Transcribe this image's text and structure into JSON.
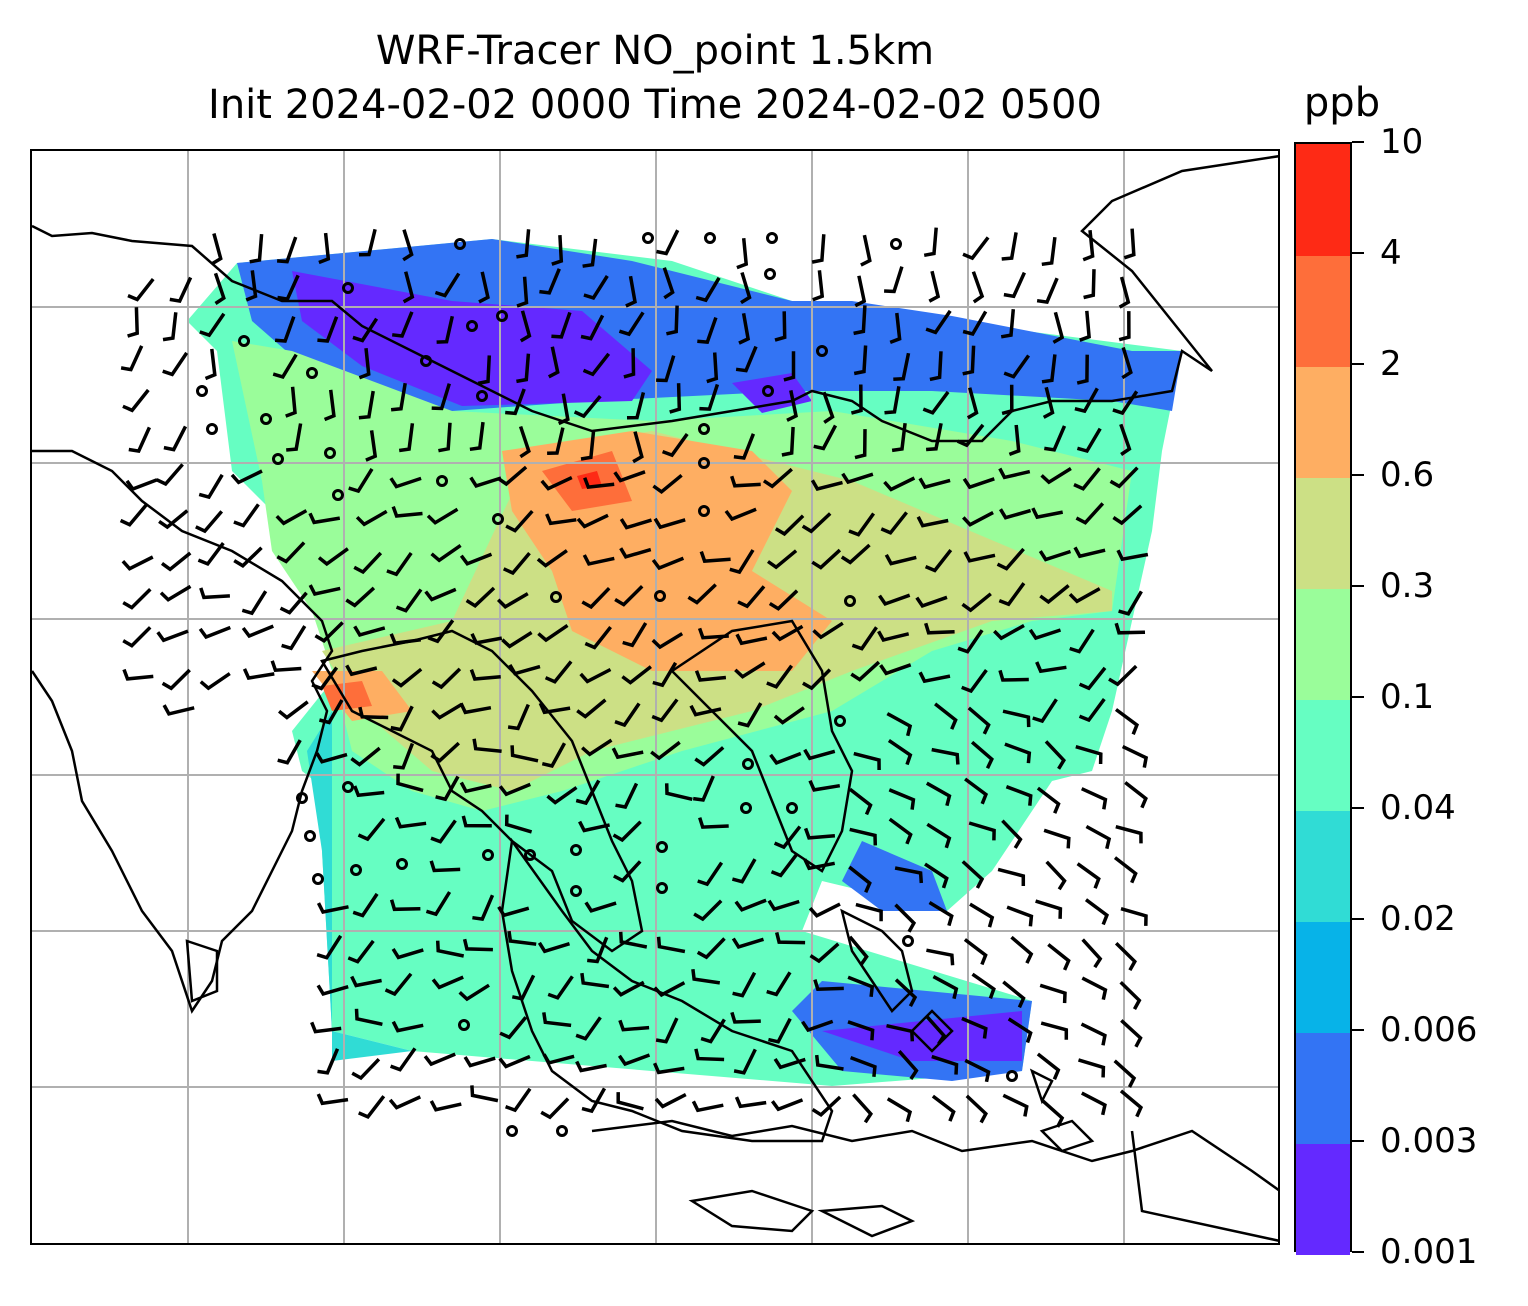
{
  "title": {
    "line1": "WRF-Tracer NO_point 1.5km",
    "line2": "Init 2024-02-02 0000 Time 2024-02-02 0500"
  },
  "colorbar": {
    "unit": "ppb",
    "levels": [
      "0.001",
      "0.003",
      "0.006",
      "0.02",
      "0.04",
      "0.1",
      "0.3",
      "0.6",
      "2",
      "4",
      "10"
    ],
    "colors": [
      "#6429ff",
      "#3374f4",
      "#07b3e8",
      "#30dcd5",
      "#66fec2",
      "#9afd9a",
      "#cce085",
      "#feae62",
      "#fe6e3a",
      "#fe2a15"
    ]
  },
  "map": {
    "coastline_color": "#000000",
    "gridline_color": "#b0b0b0",
    "wind_barbs": "black",
    "calm_marker": "circle"
  }
}
